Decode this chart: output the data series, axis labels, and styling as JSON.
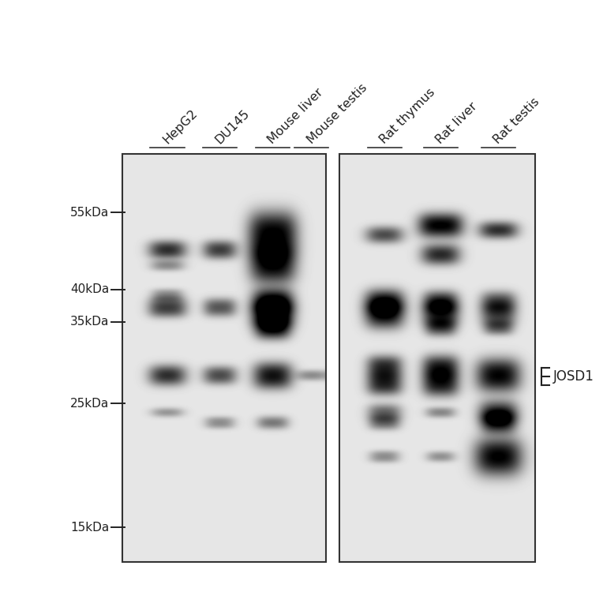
{
  "background_color": "#ffffff",
  "gel_bg_value": 230,
  "border_color": "#333333",
  "text_color": "#222222",
  "lane_labels": [
    "HepG2",
    "DU145",
    "Mouse liver",
    "Mouse testis",
    "Rat thymus",
    "Rat liver",
    "Rat testis"
  ],
  "mw_markers": [
    "55kDa",
    "40kDa",
    "35kDa",
    "25kDa",
    "15kDa"
  ],
  "josd1_label": "JOSD1",
  "fig_width": 7.64,
  "fig_height": 7.64,
  "dpi": 100,
  "label_fontsize": 11.5,
  "tick_fontsize": 11.0
}
